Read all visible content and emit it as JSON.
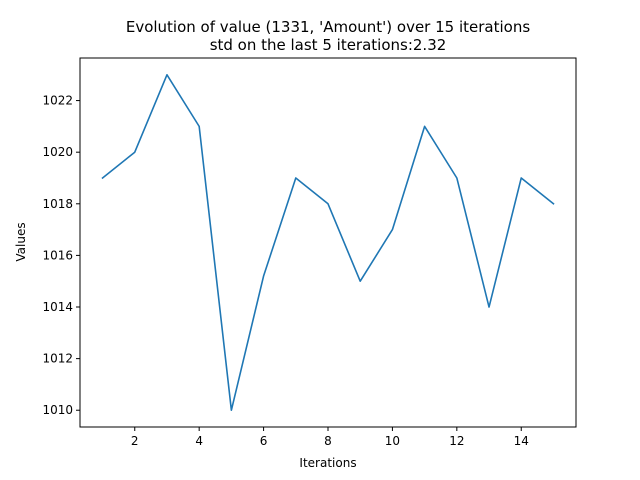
{
  "chart_data": {
    "type": "line",
    "title": "Evolution of value (1331, 'Amount') over 15 iterations",
    "subtitle": "std on the last 5 iterations:2.32",
    "xlabel": "Iterations",
    "ylabel": "Values",
    "x": [
      1,
      2,
      3,
      4,
      5,
      6,
      7,
      8,
      9,
      10,
      11,
      12,
      13,
      14,
      15
    ],
    "series": [
      {
        "values": [
          1019,
          1020,
          1023,
          1021,
          1010,
          1015.2,
          1019,
          1018,
          1015,
          1017,
          1021,
          1019,
          1014,
          1019,
          1018
        ],
        "color": "#1f77b4"
      }
    ],
    "xlim": [
      0.3,
      15.7
    ],
    "ylim": [
      1009.35,
      1023.65
    ],
    "xticks": [
      2,
      4,
      6,
      8,
      10,
      12,
      14
    ],
    "yticks": [
      1010,
      1012,
      1014,
      1016,
      1018,
      1020,
      1022
    ],
    "grid": false
  }
}
